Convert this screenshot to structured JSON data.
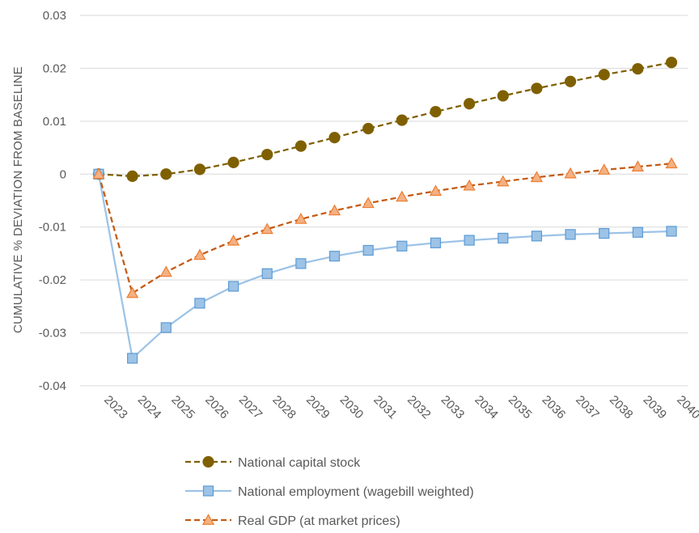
{
  "chart_data": {
    "type": "line",
    "title": "",
    "xlabel": "",
    "ylabel": "CUMULATIVE % DEVIATION FROM BASELINE",
    "ylim": [
      -0.04,
      0.03
    ],
    "yticks": [
      "0.03",
      "0.02",
      "0.01",
      "0",
      "-0.01",
      "-0.02",
      "-0.03",
      "-0.04"
    ],
    "ytick_values": [
      0.03,
      0.02,
      0.01,
      0,
      -0.01,
      -0.02,
      -0.03,
      -0.04
    ],
    "grid": true,
    "legend_position": "bottom",
    "categories": [
      "2023",
      "2024",
      "2025",
      "2026",
      "2027",
      "2028",
      "2029",
      "2030",
      "2031",
      "2032",
      "2033",
      "2034",
      "2035",
      "2036",
      "2037",
      "2038",
      "2039",
      "2040"
    ],
    "series": [
      {
        "name": "National capital stock",
        "color": "#7F6000",
        "line_style": "dashed",
        "marker": "circle",
        "values": [
          0,
          -0.0004,
          0,
          0.0009,
          0.0022,
          0.0037,
          0.0053,
          0.0069,
          0.0086,
          0.0102,
          0.0118,
          0.0133,
          0.0148,
          0.0162,
          0.0175,
          0.0188,
          0.0199,
          0.0211
        ]
      },
      {
        "name": "National employment (wagebill weighted)",
        "color": "#9DC3E6",
        "marker_color": "#9DC3E6",
        "marker_edge": "#5B9BD5",
        "line_style": "solid",
        "marker": "square",
        "values": [
          0,
          -0.0348,
          -0.029,
          -0.0244,
          -0.0212,
          -0.0188,
          -0.0169,
          -0.0155,
          -0.0144,
          -0.0136,
          -0.013,
          -0.0125,
          -0.0121,
          -0.0117,
          -0.0114,
          -0.0112,
          -0.011,
          -0.0108
        ]
      },
      {
        "name": "Real GDP (at market prices)",
        "color": "#C55A11",
        "marker_color": "#F4B183",
        "marker_edge": "#ED7D31",
        "line_style": "dashed",
        "marker": "triangle",
        "values": [
          0,
          -0.0225,
          -0.0185,
          -0.0153,
          -0.0126,
          -0.0104,
          -0.0085,
          -0.0069,
          -0.0055,
          -0.0043,
          -0.0032,
          -0.0022,
          -0.0014,
          -0.0006,
          0.0001,
          0.0008,
          0.0014,
          0.002
        ]
      }
    ]
  }
}
